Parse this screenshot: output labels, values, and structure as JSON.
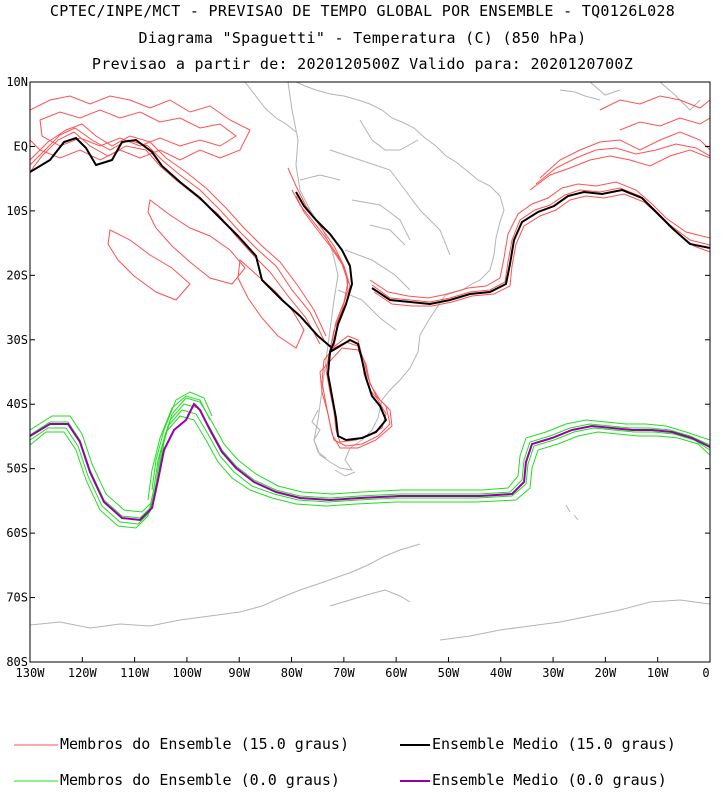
{
  "title": {
    "line1": "CPTEC/INPE/MCT - PREVISAO DE TEMPO GLOBAL POR ENSEMBLE - TQ0126L028",
    "line2": "Diagrama \"Spaguetti\" - Temperatura (C) (850 hPa)",
    "line3": "Previsao a partir de: 2020120500Z  Valido para: 2020120700Z"
  },
  "axes": {
    "lat_labels": [
      "10N",
      "EQ",
      "10S",
      "20S",
      "30S",
      "40S",
      "50S",
      "60S",
      "70S",
      "80S"
    ],
    "lat_values": [
      10,
      0,
      -10,
      -20,
      -30,
      -40,
      -50,
      -60,
      -70,
      -80
    ],
    "lon_labels": [
      "130W",
      "120W",
      "110W",
      "100W",
      "90W",
      "80W",
      "70W",
      "60W",
      "50W",
      "40W",
      "30W",
      "20W",
      "10W",
      "0"
    ],
    "lon_values": [
      -130,
      -120,
      -110,
      -100,
      -90,
      -80,
      -70,
      -60,
      -50,
      -40,
      -30,
      -20,
      -10,
      0
    ],
    "lon_range": [
      -130,
      0
    ],
    "lat_range": [
      -80,
      10
    ]
  },
  "legend": [
    {
      "label": "Membros do Ensemble (15.0 graus)",
      "color": "#ff5050"
    },
    {
      "label": "Ensemble Medio (15.0 graus)",
      "color": "#000000"
    },
    {
      "label": "Membros do Ensemble (0.0 graus)",
      "color": "#22dd22"
    },
    {
      "label": "Ensemble Medio (0.0 graus)",
      "color": "#9900aa"
    }
  ],
  "colors": {
    "coast": "#b4b4b4",
    "member_15": "#ff5050",
    "mean_15": "#000000",
    "member_0": "#22dd22",
    "mean_0": "#9900aa"
  }
}
